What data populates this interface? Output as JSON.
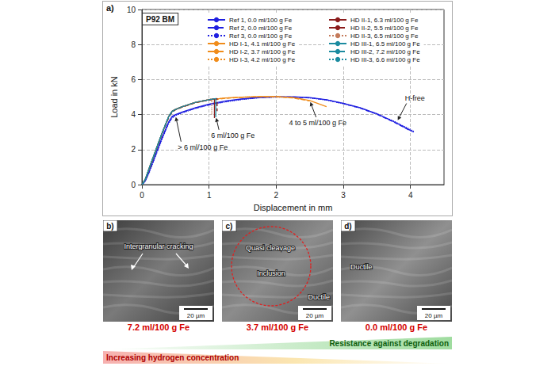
{
  "chart_data": {
    "type": "line",
    "panel": "a)",
    "title": "P92 BM",
    "x_label": "Displacement in mm",
    "y_label": "Load in kN",
    "xlim": [
      0,
      4.5
    ],
    "xticks": [
      0,
      1,
      2,
      3,
      4
    ],
    "ylim": [
      0,
      10
    ],
    "yticks": [
      0,
      2,
      4,
      6,
      8,
      10
    ],
    "grid": true,
    "legend": "upper right",
    "series": [
      {
        "name": "Ref 1, 0.0 ml/100 g Fe",
        "color": "#1f1fe0",
        "line_style": "solid",
        "x": [
          0,
          0.05,
          0.1,
          0.2,
          0.3,
          0.4,
          0.45,
          0.5,
          0.6,
          0.8,
          1.0,
          1.25,
          1.5,
          1.75,
          2.0,
          2.25,
          2.5,
          2.75,
          3.0,
          3.25,
          3.5,
          3.75,
          4.0,
          4.05
        ],
        "values": [
          0,
          0.25,
          0.7,
          1.7,
          2.7,
          3.6,
          3.9,
          4.0,
          4.15,
          4.4,
          4.6,
          4.78,
          4.9,
          4.98,
          5.02,
          5.02,
          4.97,
          4.85,
          4.65,
          4.4,
          4.05,
          3.6,
          3.1,
          3.0
        ]
      },
      {
        "name": "Ref 2, 0.0 ml/100 g Fe",
        "color": "#1f1fe0",
        "line_style": "dashed",
        "x": [
          0,
          0.05,
          0.1,
          0.2,
          0.3,
          0.4,
          0.45,
          0.5,
          0.6,
          0.8,
          1.0,
          1.25,
          1.5,
          1.75,
          2.0,
          2.25,
          2.5,
          2.75,
          3.0,
          3.25,
          3.5,
          3.75,
          4.0
        ],
        "values": [
          0,
          0.2,
          0.65,
          1.65,
          2.65,
          3.55,
          3.85,
          3.97,
          4.12,
          4.37,
          4.57,
          4.75,
          4.88,
          4.97,
          5.01,
          5.01,
          4.96,
          4.84,
          4.63,
          4.37,
          4.02,
          3.58,
          3.08
        ]
      },
      {
        "name": "Ref 3, 0.0 ml/100 g Fe",
        "color": "#1f1fe0",
        "line_style": "dotted",
        "x": [
          0,
          0.05,
          0.1,
          0.2,
          0.3,
          0.4,
          0.45,
          0.5,
          0.6,
          0.8,
          1.0,
          1.25,
          1.5,
          1.75,
          2.0,
          2.25,
          2.5,
          2.75,
          3.0,
          3.25,
          3.5,
          3.75,
          4.0,
          4.05
        ],
        "values": [
          0,
          0.2,
          0.6,
          1.6,
          2.6,
          3.5,
          3.8,
          3.95,
          4.1,
          4.35,
          4.55,
          4.73,
          4.87,
          4.96,
          5.0,
          5.0,
          4.95,
          4.83,
          4.62,
          4.38,
          4.05,
          3.63,
          3.15,
          3.05
        ]
      },
      {
        "name": "HD I-1, 4.1 ml/100 g Fe",
        "color": "#f08c1a",
        "line_style": "solid",
        "x": [
          0,
          0.05,
          0.1,
          0.2,
          0.3,
          0.4,
          0.45,
          0.5,
          0.6,
          0.8,
          1.0,
          1.25,
          1.5,
          1.75,
          2.0,
          2.25,
          2.5,
          2.75
        ],
        "values": [
          0,
          0.3,
          0.85,
          1.9,
          2.95,
          3.9,
          4.2,
          4.3,
          4.45,
          4.7,
          4.85,
          4.95,
          5.0,
          5.03,
          5.03,
          4.97,
          4.8,
          4.45
        ]
      },
      {
        "name": "HD I-2, 3.7 ml/100 g Fe",
        "color": "#f08c1a",
        "line_style": "dashed",
        "x": [
          0,
          0.05,
          0.1,
          0.2,
          0.3,
          0.4,
          0.45,
          0.5,
          0.6,
          0.8,
          1.0,
          1.25,
          1.5,
          1.75,
          2.0,
          2.25,
          2.5
        ],
        "values": [
          0,
          0.3,
          0.8,
          1.85,
          2.9,
          3.85,
          4.15,
          4.28,
          4.43,
          4.68,
          4.83,
          4.93,
          4.99,
          5.02,
          5.02,
          4.95,
          4.78
        ]
      },
      {
        "name": "HD I-3, 4.2 ml/100 g Fe",
        "color": "#f08c1a",
        "line_style": "dotted",
        "x": [
          0,
          0.05,
          0.1,
          0.2,
          0.3,
          0.4,
          0.45,
          0.5,
          0.6,
          0.8,
          1.0,
          1.25,
          1.5,
          1.75,
          2.0,
          2.25,
          2.4
        ],
        "values": [
          0,
          0.3,
          0.85,
          1.9,
          2.95,
          3.9,
          4.2,
          4.3,
          4.45,
          4.7,
          4.85,
          4.95,
          5.0,
          5.02,
          5.02,
          4.96,
          4.88
        ]
      },
      {
        "name": "HD II-1, 6.3 ml/100 g Fe",
        "color": "#8b1c1c",
        "line_style": "solid",
        "x": [
          0,
          0.05,
          0.1,
          0.2,
          0.3,
          0.4,
          0.45,
          0.5,
          0.6,
          0.8,
          1.0,
          1.08,
          1.08
        ],
        "values": [
          0,
          0.3,
          0.85,
          1.9,
          2.95,
          3.9,
          4.2,
          4.3,
          4.45,
          4.7,
          4.85,
          4.9,
          3.8
        ]
      },
      {
        "name": "HD II-2, 5.5 ml/100 g Fe",
        "color": "#8b1c1c",
        "line_style": "dashed",
        "x": [
          0,
          0.05,
          0.1,
          0.2,
          0.3,
          0.4,
          0.45,
          0.5,
          0.6,
          0.8,
          1.0,
          1.12,
          1.12
        ],
        "values": [
          0,
          0.3,
          0.8,
          1.85,
          2.9,
          3.85,
          4.15,
          4.28,
          4.43,
          4.68,
          4.83,
          4.92,
          4.2
        ]
      },
      {
        "name": "HD II-3, 6.5 ml/100 g Fe",
        "color": "#c47a5a",
        "line_style": "dotted",
        "x": [
          0,
          0.05,
          0.1,
          0.2,
          0.3,
          0.4,
          0.45,
          0.5,
          0.6,
          0.8,
          1.0,
          1.04,
          1.04
        ],
        "values": [
          0,
          0.3,
          0.85,
          1.9,
          2.95,
          3.9,
          4.2,
          4.3,
          4.45,
          4.7,
          4.87,
          4.9,
          4.0
        ]
      },
      {
        "name": "HD III-1, 6.5 ml/100 g Fe",
        "color": "#1b8ba0",
        "line_style": "solid",
        "x": [
          0,
          0.05,
          0.1,
          0.2,
          0.3,
          0.4,
          0.45,
          0.5,
          0.6,
          0.8,
          1.0,
          1.1,
          1.1
        ],
        "values": [
          0,
          0.3,
          0.85,
          1.9,
          2.95,
          3.9,
          4.2,
          4.3,
          4.45,
          4.7,
          4.85,
          4.92,
          3.85
        ]
      },
      {
        "name": "HD III-2, 7.2 ml/100 g Fe",
        "color": "#1b8ba0",
        "line_style": "dashed",
        "x": [
          0,
          0.05,
          0.1,
          0.2,
          0.3,
          0.4,
          0.45,
          0.48
        ],
        "values": [
          0,
          0.3,
          0.85,
          1.9,
          2.95,
          3.9,
          4.15,
          4.2
        ]
      },
      {
        "name": "HD III-3, 6.6 ml/100 g Fe",
        "color": "#1b8ba0",
        "line_style": "dotted",
        "x": [
          0,
          0.05,
          0.1,
          0.2,
          0.3,
          0.4,
          0.45,
          0.5,
          0.52
        ],
        "values": [
          0,
          0.3,
          0.85,
          1.9,
          2.95,
          3.9,
          4.18,
          4.28,
          4.3
        ]
      }
    ],
    "annotations": [
      {
        "text": "> 6 ml/100 g Fe",
        "x": 0.5,
        "y": 3.95
      },
      {
        "text": "6 ml/100 g Fe",
        "x": 1.1,
        "y": 3.9
      },
      {
        "text": "4 to 5 ml/100 g Fe",
        "x": 2.5,
        "y": 4.8
      },
      {
        "text": "H-free",
        "x": 3.8,
        "y": 3.6
      }
    ]
  },
  "micrographs": [
    {
      "panel": "b)",
      "labels": [
        "Intergranular cracking"
      ],
      "scale_bar": "20 µm",
      "caption": "7.2 ml/100 g Fe"
    },
    {
      "panel": "c)",
      "labels": [
        "Quasi cleavage",
        "Inclusion",
        "Ductile"
      ],
      "scale_bar": "20 µm",
      "caption": "3.7 ml/100 g Fe"
    },
    {
      "panel": "d)",
      "labels": [
        "Ductile"
      ],
      "scale_bar": "20 µm",
      "caption": "0.0 ml/100 g Fe"
    }
  ],
  "gradient_bar": {
    "left_label": "Increasing hydrogen concentration",
    "right_label": "Resistance against degradation"
  }
}
